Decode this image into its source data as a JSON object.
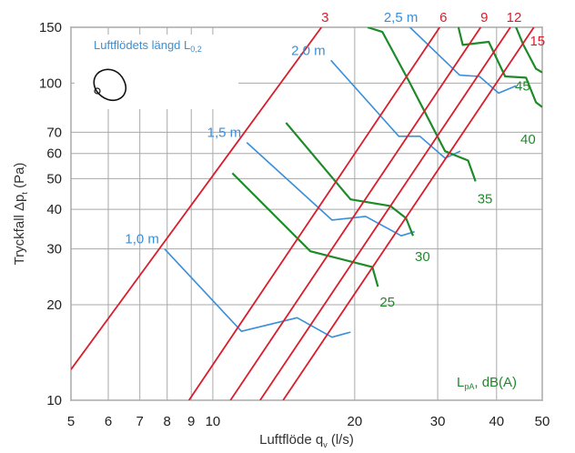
{
  "chart_data": {
    "type": "line",
    "x_scale": "log",
    "y_scale": "log",
    "xlim": [
      5,
      50
    ],
    "ylim": [
      10,
      150
    ],
    "grid": true,
    "xlabel": "Luftflöde q",
    "xlabel_sub": "v",
    "xlabel_unit": " (l/s)",
    "ylabel": "Tryckfall Δp",
    "ylabel_sub": "t",
    "ylabel_unit": " (Pa)",
    "x_ticks": [
      5,
      6,
      7,
      8,
      9,
      10,
      20,
      30,
      40,
      50
    ],
    "x_tick_labels": [
      "5",
      "6",
      "7",
      "8",
      "9",
      "10",
      "20",
      "30",
      "40",
      "50"
    ],
    "y_ticks": [
      10,
      20,
      30,
      40,
      50,
      60,
      70,
      100,
      150
    ],
    "y_tick_labels": [
      "10",
      "20",
      "30",
      "40",
      "50",
      "60",
      "70",
      "100",
      "150"
    ],
    "inset_label": "Luftflödets längd L",
    "inset_label_sub": "0,2",
    "sound_label": "L",
    "sound_label_sub": "pA",
    "sound_label_unit": ", dB(A)",
    "colors": {
      "red": "#d81e2c",
      "blue": "#3a8fd8",
      "green": "#1f8a2a",
      "grid": "#a8a8a8"
    },
    "red_lines": [
      {
        "label": "3",
        "points": [
          [
            5,
            12.5
          ],
          [
            17.0,
            150
          ]
        ]
      },
      {
        "label": "6",
        "points": [
          [
            8.9,
            10
          ],
          [
            30.3,
            150
          ]
        ]
      },
      {
        "label": "9",
        "points": [
          [
            10.9,
            10
          ],
          [
            37.0,
            150
          ]
        ]
      },
      {
        "label": "12",
        "points": [
          [
            12.6,
            10
          ],
          [
            42.8,
            150
          ]
        ]
      },
      {
        "label": "15",
        "points": [
          [
            14.1,
            10
          ],
          [
            48.0,
            150
          ]
        ]
      }
    ],
    "blue_lines": [
      {
        "label": "1,0 m",
        "points": [
          [
            7.9,
            30
          ],
          [
            11.5,
            16.5
          ],
          [
            15.1,
            18.2
          ],
          [
            17.9,
            15.8
          ],
          [
            19.6,
            16.4
          ]
        ]
      },
      {
        "label": "1,5 m",
        "points": [
          [
            11.8,
            65
          ],
          [
            17.9,
            37
          ],
          [
            21.1,
            38
          ],
          [
            25.1,
            33
          ],
          [
            26.8,
            34
          ]
        ]
      },
      {
        "label": "2,0 m",
        "points": [
          [
            17.8,
            118
          ],
          [
            24.8,
            68
          ],
          [
            27.5,
            68
          ],
          [
            31.1,
            58
          ],
          [
            33.5,
            61
          ]
        ]
      },
      {
        "label": "2,5 m",
        "points": [
          [
            26.2,
            150
          ],
          [
            33.4,
            106
          ],
          [
            36.8,
            105
          ],
          [
            40.4,
            93
          ],
          [
            44.0,
            98
          ]
        ]
      }
    ],
    "green_lines": [
      {
        "label": "25",
        "points": [
          [
            11.0,
            52
          ],
          [
            16.1,
            29.5
          ],
          [
            21.8,
            26.3
          ],
          [
            22.4,
            22.8
          ]
        ]
      },
      {
        "label": "30",
        "points": [
          [
            14.3,
            75
          ],
          [
            19.6,
            43
          ],
          [
            23.8,
            41
          ],
          [
            25.7,
            37.5
          ],
          [
            26.6,
            33
          ]
        ]
      },
      {
        "label": "35",
        "points": [
          [
            21.3,
            150
          ],
          [
            22.9,
            145
          ],
          [
            26.1,
            101
          ],
          [
            31.1,
            61
          ],
          [
            34.8,
            57
          ],
          [
            36.1,
            49
          ]
        ]
      },
      {
        "label": "40",
        "points": [
          [
            33.2,
            150
          ],
          [
            33.9,
            132
          ],
          [
            38.5,
            135
          ],
          [
            41.7,
            105
          ],
          [
            46.2,
            104
          ],
          [
            48.5,
            87
          ],
          [
            50,
            84
          ]
        ]
      },
      {
        "label": "45",
        "points": [
          [
            44.0,
            150
          ],
          [
            45.6,
            132
          ],
          [
            48.5,
            111
          ],
          [
            50,
            108
          ]
        ]
      }
    ]
  }
}
